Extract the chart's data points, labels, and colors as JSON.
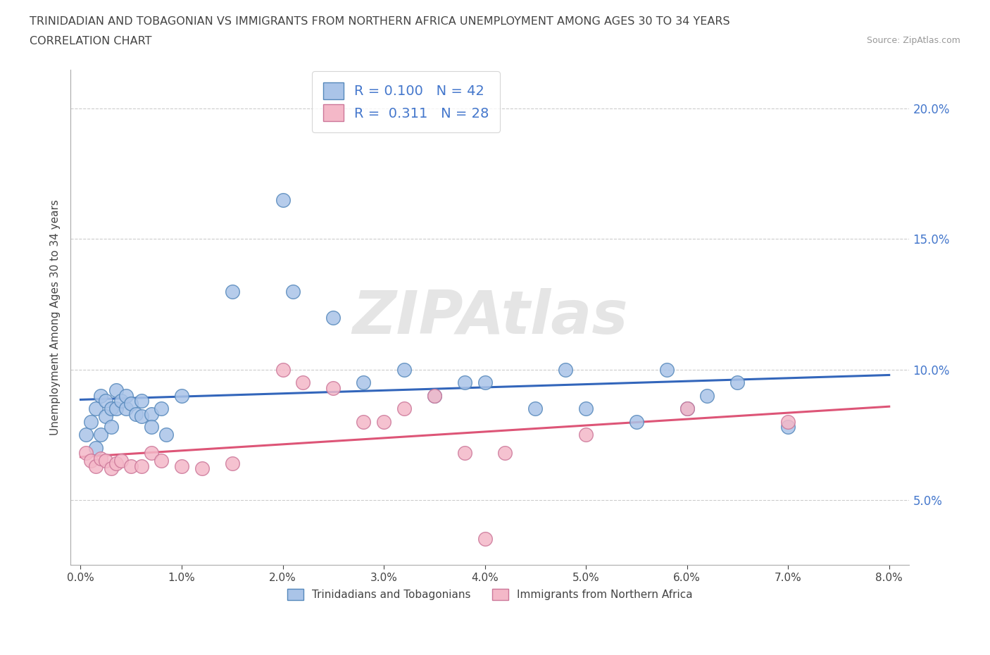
{
  "title_line1": "TRINIDADIAN AND TOBAGONIAN VS IMMIGRANTS FROM NORTHERN AFRICA UNEMPLOYMENT AMONG AGES 30 TO 34 YEARS",
  "title_line2": "CORRELATION CHART",
  "source_text": "Source: ZipAtlas.com",
  "ylabel": "Unemployment Among Ages 30 to 34 years",
  "xlim": [
    -0.001,
    0.082
  ],
  "ylim": [
    0.025,
    0.215
  ],
  "xticks": [
    0.0,
    0.01,
    0.02,
    0.03,
    0.04,
    0.05,
    0.06,
    0.07,
    0.08
  ],
  "xticklabels": [
    "0.0%",
    "1.0%",
    "2.0%",
    "3.0%",
    "4.0%",
    "5.0%",
    "6.0%",
    "7.0%",
    "8.0%"
  ],
  "yticks": [
    0.05,
    0.1,
    0.15,
    0.2
  ],
  "yticklabels": [
    "5.0%",
    "10.0%",
    "15.0%",
    "20.0%"
  ],
  "blue_color": "#aac4e8",
  "blue_edge": "#5588bb",
  "pink_color": "#f4b8c8",
  "pink_edge": "#cc7799",
  "trend_blue": "#3366bb",
  "trend_pink": "#dd5577",
  "R_blue": 0.1,
  "N_blue": 42,
  "R_pink": 0.311,
  "N_pink": 28,
  "legend_label_blue": "Trinidadians and Tobagonians",
  "legend_label_pink": "Immigrants from Northern Africa",
  "watermark": "ZIPAtlas",
  "blue_x": [
    0.0005,
    0.001,
    0.0015,
    0.0015,
    0.002,
    0.002,
    0.0025,
    0.0025,
    0.003,
    0.003,
    0.0035,
    0.0035,
    0.004,
    0.0045,
    0.0045,
    0.005,
    0.0055,
    0.006,
    0.006,
    0.007,
    0.007,
    0.008,
    0.0085,
    0.01,
    0.015,
    0.02,
    0.021,
    0.025,
    0.028,
    0.032,
    0.035,
    0.038,
    0.04,
    0.045,
    0.048,
    0.05,
    0.055,
    0.058,
    0.06,
    0.062,
    0.065,
    0.07
  ],
  "blue_y": [
    0.075,
    0.08,
    0.085,
    0.07,
    0.075,
    0.09,
    0.082,
    0.088,
    0.078,
    0.085,
    0.085,
    0.092,
    0.088,
    0.085,
    0.09,
    0.087,
    0.083,
    0.088,
    0.082,
    0.083,
    0.078,
    0.085,
    0.075,
    0.09,
    0.13,
    0.165,
    0.13,
    0.12,
    0.095,
    0.1,
    0.09,
    0.095,
    0.095,
    0.085,
    0.1,
    0.085,
    0.08,
    0.1,
    0.085,
    0.09,
    0.095,
    0.078
  ],
  "pink_x": [
    0.0005,
    0.001,
    0.0015,
    0.002,
    0.0025,
    0.003,
    0.0035,
    0.004,
    0.005,
    0.006,
    0.007,
    0.008,
    0.01,
    0.012,
    0.015,
    0.02,
    0.022,
    0.025,
    0.028,
    0.03,
    0.032,
    0.035,
    0.038,
    0.04,
    0.042,
    0.05,
    0.06,
    0.07
  ],
  "pink_y": [
    0.068,
    0.065,
    0.063,
    0.066,
    0.065,
    0.062,
    0.064,
    0.065,
    0.063,
    0.063,
    0.068,
    0.065,
    0.063,
    0.062,
    0.064,
    0.1,
    0.095,
    0.093,
    0.08,
    0.08,
    0.085,
    0.09,
    0.068,
    0.035,
    0.068,
    0.075,
    0.085,
    0.08
  ],
  "grid_color": "#cccccc",
  "bg_color": "#ffffff",
  "tick_color": "#4477cc",
  "axis_color": "#aaaaaa",
  "title_color": "#444444",
  "label_color": "#444444"
}
